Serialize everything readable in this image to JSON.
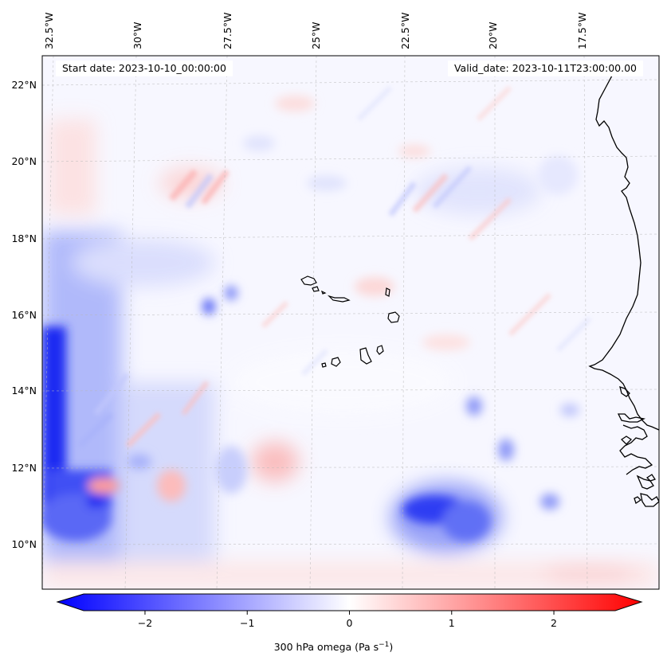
{
  "header": {
    "start_date": "Start date: 2023-10-10_00:00:00",
    "valid_date": "Valid_date: 2023-10-11T23:00:00.00"
  },
  "axes": {
    "lon_labels": [
      "32.5°W",
      "30°W",
      "27.5°W",
      "25°W",
      "22.5°W",
      "20°W",
      "17.5°W"
    ],
    "lat_labels": [
      "22°N",
      "20°N",
      "18°N",
      "16°N",
      "14°N",
      "12°N",
      "10°N"
    ]
  },
  "colorbar": {
    "min": -2.6,
    "max": 2.6,
    "ticks": [
      "−2",
      "−1",
      "0",
      "1",
      "2"
    ],
    "tick_values": [
      -2,
      -1,
      0,
      1,
      2
    ],
    "label_text": "300 hPa omega (Pa s",
    "label_exp": "−1",
    "label_close": ")",
    "colors": {
      "low": "#0000ff",
      "mid": "#ffffff",
      "high": "#ff0000"
    }
  },
  "features": {
    "strong_ascent_color": "#1f2cf2",
    "moderate_ascent_color": "#7f8cf7",
    "weak_ascent_color": "#c9cffc",
    "descent_color": "#fcc9c9",
    "coast_color": "#000000"
  }
}
